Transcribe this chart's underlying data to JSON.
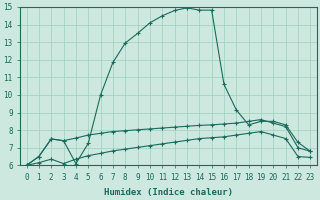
{
  "xlabel": "Humidex (Indice chaleur)",
  "xlim": [
    -0.5,
    23.5
  ],
  "ylim": [
    6,
    15
  ],
  "xticks": [
    0,
    1,
    2,
    3,
    4,
    5,
    6,
    7,
    8,
    9,
    10,
    11,
    12,
    13,
    14,
    15,
    16,
    17,
    18,
    19,
    20,
    21,
    22,
    23
  ],
  "yticks": [
    6,
    7,
    8,
    9,
    10,
    11,
    12,
    13,
    14,
    15
  ],
  "bg_color": "#cce8df",
  "grid_color": "#9ecfbf",
  "line_color": "#1a6b5a",
  "line_peak_x": [
    0,
    1,
    2,
    3,
    4,
    5,
    6,
    7,
    8,
    9,
    10,
    11,
    12,
    13,
    14,
    15,
    16,
    17,
    18,
    19,
    20,
    21,
    22,
    23
  ],
  "line_peak_y": [
    6.0,
    6.5,
    7.5,
    7.4,
    6.1,
    7.25,
    10.0,
    11.85,
    12.95,
    13.5,
    14.1,
    14.5,
    14.8,
    14.95,
    14.82,
    14.82,
    10.6,
    9.15,
    8.3,
    8.5,
    8.5,
    8.3,
    7.3,
    6.8
  ],
  "line_mid_x": [
    0,
    1,
    2,
    3,
    4,
    5,
    6,
    7,
    8,
    9,
    10,
    11,
    12,
    13,
    14,
    15,
    16,
    17,
    18,
    19,
    20,
    21,
    22,
    23
  ],
  "line_mid_y": [
    6.0,
    6.5,
    7.5,
    7.4,
    7.55,
    7.72,
    7.82,
    7.92,
    7.97,
    8.02,
    8.07,
    8.12,
    8.17,
    8.22,
    8.27,
    8.3,
    8.35,
    8.4,
    8.5,
    8.6,
    8.4,
    8.2,
    7.0,
    6.8
  ],
  "line_bot_x": [
    0,
    1,
    2,
    3,
    4,
    5,
    6,
    7,
    8,
    9,
    10,
    11,
    12,
    13,
    14,
    15,
    16,
    17,
    18,
    19,
    20,
    21,
    22,
    23
  ],
  "line_bot_y": [
    6.0,
    6.15,
    6.35,
    6.1,
    6.35,
    6.55,
    6.68,
    6.82,
    6.92,
    7.02,
    7.12,
    7.22,
    7.32,
    7.42,
    7.52,
    7.57,
    7.62,
    7.72,
    7.82,
    7.92,
    7.72,
    7.52,
    6.5,
    6.45
  ]
}
